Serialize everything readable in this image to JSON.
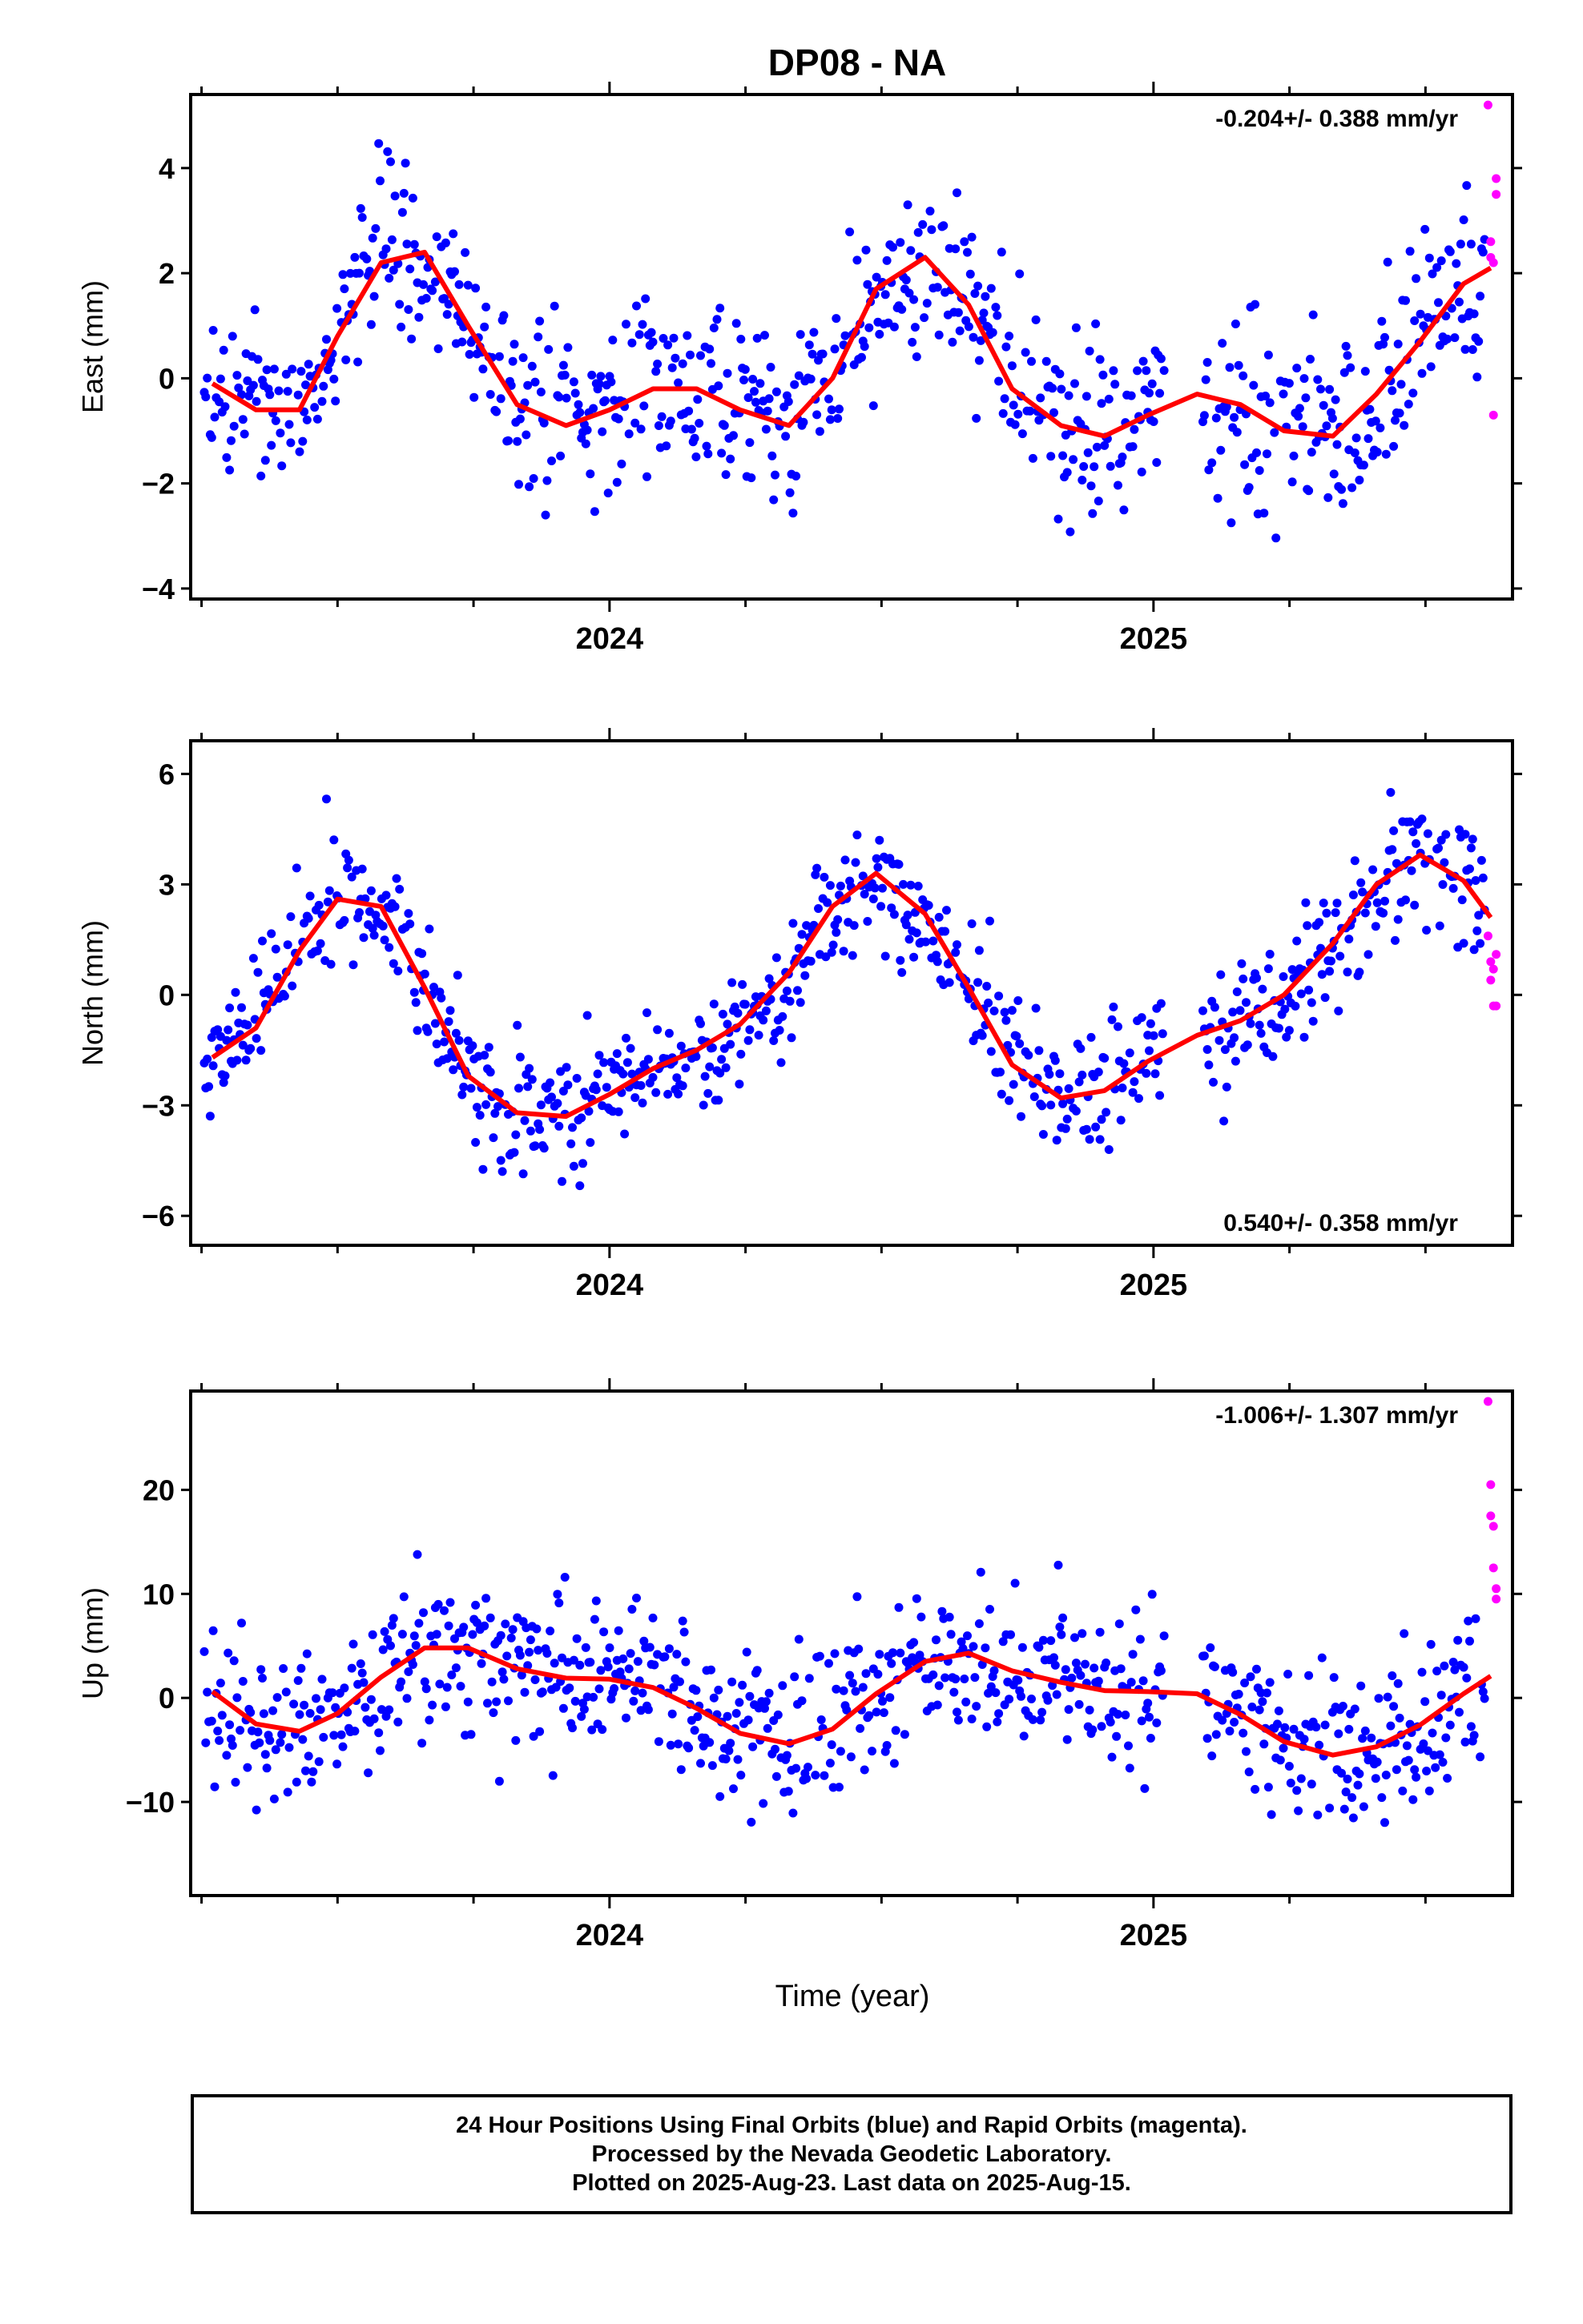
{
  "title": "DP08 - NA",
  "xlabel": "Time (year)",
  "footer": {
    "line1": "24 Hour Positions Using Final Orbits (blue) and Rapid Orbits (magenta).",
    "line2": "Processed by the Nevada Geodetic Laboratory.",
    "line3": "Plotted on 2025-Aug-23. Last data on 2025-Aug-15."
  },
  "colors": {
    "final": "#0000ff",
    "rapid": "#ff00ff",
    "fit": "#ff0000",
    "frame": "#000000"
  },
  "chart_data": [
    {
      "type": "scatter",
      "name": "east",
      "ylabel": "East (mm)",
      "xlim": [
        2023.23,
        2025.66
      ],
      "ylim": [
        -4.2,
        5.4
      ],
      "yticks": [
        -4,
        -2,
        0,
        2,
        4
      ],
      "xticks_major": [
        2024,
        2025
      ],
      "rate_label": "-0.204+/- 0.388 mm/yr",
      "rate_position": "top-right",
      "fit": {
        "x": [
          2023.27,
          2023.35,
          2023.43,
          2023.5,
          2023.58,
          2023.66,
          2023.74,
          2023.83,
          2023.92,
          2024.0,
          2024.08,
          2024.16,
          2024.24,
          2024.33,
          2024.41,
          2024.49,
          2024.58,
          2024.66,
          2024.74,
          2024.83,
          2024.91,
          2024.99,
          2025.08,
          2025.16,
          2025.24,
          2025.33,
          2025.41,
          2025.49,
          2025.57,
          2025.62
        ],
        "y": [
          -0.1,
          -0.6,
          -0.6,
          0.8,
          2.2,
          2.4,
          1.0,
          -0.5,
          -0.9,
          -0.6,
          -0.2,
          -0.2,
          -0.6,
          -0.9,
          0.0,
          1.7,
          2.3,
          1.4,
          -0.2,
          -0.9,
          -1.1,
          -0.7,
          -0.3,
          -0.5,
          -1.0,
          -1.1,
          -0.3,
          0.7,
          1.8,
          2.1
        ]
      },
      "rapid": {
        "x": [
          2025.615,
          2025.62,
          2025.62,
          2025.625,
          2025.625,
          2025.63,
          2025.63
        ],
        "y": [
          5.2,
          2.6,
          2.3,
          2.2,
          -0.7,
          3.8,
          3.5
        ]
      }
    },
    {
      "type": "scatter",
      "name": "north",
      "ylabel": "North (mm)",
      "xlim": [
        2023.23,
        2025.66
      ],
      "ylim": [
        -6.8,
        6.9
      ],
      "yticks": [
        -6,
        -3,
        0,
        3,
        6
      ],
      "xticks_major": [
        2024,
        2025
      ],
      "rate_label": "0.540+/- 0.358 mm/yr",
      "rate_position": "bottom-right",
      "fit": {
        "x": [
          2023.27,
          2023.35,
          2023.43,
          2023.5,
          2023.58,
          2023.66,
          2023.74,
          2023.83,
          2023.92,
          2024.0,
          2024.08,
          2024.16,
          2024.24,
          2024.33,
          2024.41,
          2024.49,
          2024.58,
          2024.66,
          2024.74,
          2024.83,
          2024.91,
          2024.99,
          2025.08,
          2025.16,
          2025.24,
          2025.33,
          2025.41,
          2025.49,
          2025.57,
          2025.62
        ],
        "y": [
          -1.7,
          -0.9,
          1.2,
          2.6,
          2.4,
          0.2,
          -2.2,
          -3.2,
          -3.3,
          -2.7,
          -2.0,
          -1.5,
          -0.8,
          0.6,
          2.4,
          3.3,
          2.2,
          0.2,
          -1.9,
          -2.8,
          -2.6,
          -1.8,
          -1.1,
          -0.7,
          0.0,
          1.4,
          3.0,
          3.8,
          3.1,
          2.1
        ]
      },
      "rapid": {
        "x": [
          2025.615,
          2025.62,
          2025.62,
          2025.625,
          2025.625,
          2025.63,
          2025.63
        ],
        "y": [
          1.6,
          0.9,
          0.4,
          -0.3,
          0.7,
          1.1,
          -0.3
        ]
      }
    },
    {
      "type": "scatter",
      "name": "up",
      "ylabel": "Up (mm)",
      "xlim": [
        2023.23,
        2025.66
      ],
      "ylim": [
        -19,
        29.5
      ],
      "yticks": [
        -10,
        0,
        10,
        20
      ],
      "xticks_major": [
        2024,
        2025
      ],
      "rate_label": "-1.006+/- 1.307 mm/yr",
      "rate_position": "top-right",
      "fit": {
        "x": [
          2023.27,
          2023.35,
          2023.43,
          2023.5,
          2023.58,
          2023.66,
          2023.74,
          2023.83,
          2023.92,
          2024.0,
          2024.08,
          2024.16,
          2024.24,
          2024.33,
          2024.41,
          2024.49,
          2024.58,
          2024.66,
          2024.74,
          2024.83,
          2024.91,
          2024.99,
          2025.08,
          2025.16,
          2025.24,
          2025.33,
          2025.41,
          2025.49,
          2025.57,
          2025.62
        ],
        "y": [
          0.6,
          -2.5,
          -3.2,
          -1.5,
          2.0,
          4.8,
          4.8,
          2.8,
          1.9,
          1.8,
          1.0,
          -1.0,
          -3.4,
          -4.4,
          -3.0,
          0.4,
          3.5,
          4.3,
          2.6,
          1.5,
          0.7,
          0.6,
          0.4,
          -1.6,
          -4.2,
          -5.5,
          -4.7,
          -2.6,
          0.4,
          2.1
        ]
      },
      "rapid": {
        "x": [
          2025.615,
          2025.62,
          2025.62,
          2025.625,
          2025.625,
          2025.63,
          2025.63
        ],
        "y": [
          28.5,
          20.5,
          17.5,
          16.5,
          12.5,
          10.5,
          9.5
        ]
      }
    }
  ]
}
